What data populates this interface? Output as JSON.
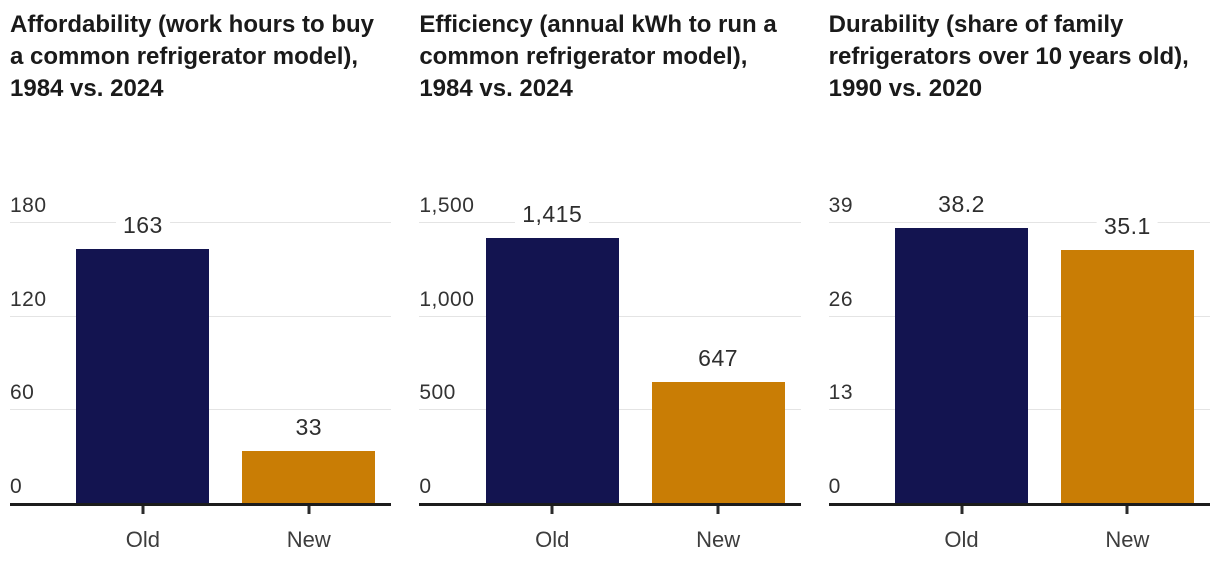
{
  "colors": {
    "old_bar": "#131450",
    "new_bar": "#c97d05",
    "grid": "#e4e4e4",
    "axis": "#1c1c1c",
    "title_text": "#1a1a1a",
    "tick_text": "#333333",
    "value_text": "#2e2e2e",
    "category_text": "#3d3d3d",
    "background": "#ffffff"
  },
  "chart_data": [
    {
      "type": "bar",
      "title": "Affordability (work hours to buy a common refrigerator model), 1984 vs. 2024",
      "categories": [
        "Old",
        "New"
      ],
      "values": [
        163,
        33
      ],
      "value_labels": [
        "163",
        "33"
      ],
      "ytick_labels": [
        "180",
        "120",
        "60",
        "0"
      ],
      "ytick_values": [
        180,
        120,
        60,
        0
      ],
      "ylim": [
        0,
        180
      ],
      "xlabel": "",
      "ylabel": "",
      "grid": true,
      "legend_position": "none"
    },
    {
      "type": "bar",
      "title": "Efficiency (annual kWh to run a common refrigerator model), 1984 vs. 2024",
      "categories": [
        "Old",
        "New"
      ],
      "values": [
        1415,
        647
      ],
      "value_labels": [
        "1,415",
        "647"
      ],
      "ytick_labels": [
        "1,500",
        "1,000",
        "500",
        "0"
      ],
      "ytick_values": [
        1500,
        1000,
        500,
        0
      ],
      "ylim": [
        0,
        1500
      ],
      "xlabel": "",
      "ylabel": "",
      "grid": true,
      "legend_position": "none"
    },
    {
      "type": "bar",
      "title": "Durability (share of family refrigerators over 10 years old), 1990 vs. 2020",
      "categories": [
        "Old",
        "New"
      ],
      "values": [
        38.2,
        35.1
      ],
      "value_labels": [
        "38.2",
        "35.1"
      ],
      "ytick_labels": [
        "39",
        "26",
        "13",
        "0"
      ],
      "ytick_values": [
        39,
        26,
        13,
        0
      ],
      "ylim": [
        0,
        39
      ],
      "xlabel": "",
      "ylabel": "",
      "grid": true,
      "legend_position": "none"
    }
  ]
}
